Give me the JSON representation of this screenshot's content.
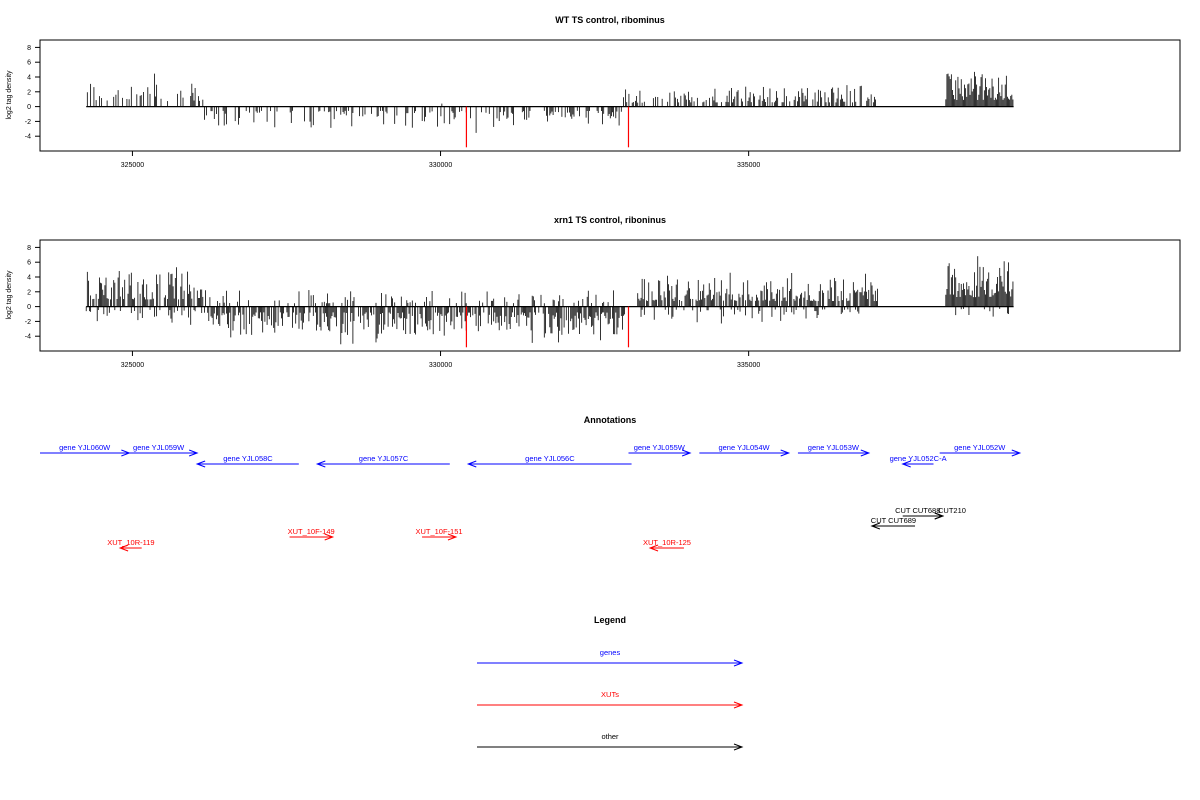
{
  "colors": {
    "genes": "#0000ff",
    "xuts": "#ff0000",
    "other": "#000000",
    "axis": "#000000",
    "highlight": "#ff0000"
  },
  "chart_data": [
    {
      "type": "bar",
      "panel": "top",
      "title": "WT TS control, ribominus",
      "ylabel": "log2 tag density",
      "xlim": [
        323500,
        342000
      ],
      "ylim": [
        -6,
        9
      ],
      "yticks": [
        8,
        6,
        4,
        2,
        0,
        -2,
        -4
      ],
      "ytick_labels": [
        "8",
        "6",
        "4",
        "2",
        "0",
        "-2",
        "-4"
      ],
      "xticks": [
        325000,
        330000,
        335000
      ],
      "xtick_labels": [
        "325000",
        "330000",
        "335000"
      ],
      "data_range": [
        324250,
        339300
      ],
      "segments": [
        {
          "from": 324250,
          "to": 326150,
          "sign": 1,
          "max": 5.0,
          "density": 0.35
        },
        {
          "from": 326150,
          "to": 332950,
          "sign": -1,
          "max": 3.8,
          "density": 0.4
        },
        {
          "from": 329950,
          "to": 330050,
          "sign": 1,
          "max": 1.0,
          "density": 0.5
        },
        {
          "from": 332950,
          "to": 333400,
          "sign": 1,
          "max": 3.5,
          "density": 0.5
        },
        {
          "from": 333400,
          "to": 337100,
          "sign": 1,
          "max": 3.8,
          "density": 0.55
        },
        {
          "from": 338200,
          "to": 339300,
          "sign": 1,
          "max": 6.0,
          "density": 1.0
        }
      ],
      "highlights": [
        {
          "x": 330420,
          "value": -5.5
        },
        {
          "x": 333050,
          "value": -5.5
        }
      ]
    },
    {
      "type": "bar",
      "panel": "middle",
      "title": "xrn1 TS control, riboninus",
      "ylabel": "log2 tag density",
      "xlim": [
        323500,
        342000
      ],
      "ylim": [
        -6,
        9
      ],
      "yticks": [
        8,
        6,
        4,
        2,
        0,
        -2,
        -4
      ],
      "ytick_labels": [
        "8",
        "6",
        "4",
        "2",
        "0",
        "-2",
        "-4"
      ],
      "xticks": [
        325000,
        330000,
        335000
      ],
      "xtick_labels": [
        "325000",
        "330000",
        "335000"
      ],
      "data_range": [
        324250,
        339300
      ],
      "segments": [
        {
          "from": 324250,
          "to": 326150,
          "sign": 1,
          "max": 6.5,
          "density": 0.7
        },
        {
          "from": 324250,
          "to": 326150,
          "sign": -1,
          "max": 3.0,
          "density": 0.3
        },
        {
          "from": 326150,
          "to": 333000,
          "sign": -1,
          "max": 5.2,
          "density": 0.75
        },
        {
          "from": 326150,
          "to": 333000,
          "sign": 1,
          "max": 3.0,
          "density": 0.2
        },
        {
          "from": 333200,
          "to": 337100,
          "sign": 1,
          "max": 5.0,
          "density": 0.8
        },
        {
          "from": 333200,
          "to": 337100,
          "sign": -1,
          "max": 2.5,
          "density": 0.2
        },
        {
          "from": 338200,
          "to": 339300,
          "sign": 1,
          "max": 8.5,
          "density": 1.0
        },
        {
          "from": 338200,
          "to": 339300,
          "sign": -1,
          "max": 2.0,
          "density": 0.2
        }
      ],
      "highlights": [
        {
          "x": 330420,
          "value": -5.5
        },
        {
          "x": 333050,
          "value": -5.5
        }
      ]
    }
  ],
  "annotations": {
    "title": "Annotations",
    "genes": [
      {
        "label": "gene YJL060W",
        "from": 323500,
        "to": 324950,
        "strand": "+"
      },
      {
        "label": "gene YJL059W",
        "from": 324800,
        "to": 326050,
        "strand": "+"
      },
      {
        "label": "gene YJL058C",
        "from": 326050,
        "to": 327700,
        "strand": "-"
      },
      {
        "label": "gene YJL057C",
        "from": 328000,
        "to": 330150,
        "strand": "-"
      },
      {
        "label": "gene YJL056C",
        "from": 330450,
        "to": 333100,
        "strand": "-"
      },
      {
        "label": "gene YJL055W",
        "from": 333050,
        "to": 334050,
        "strand": "+"
      },
      {
        "label": "gene YJL054W",
        "from": 334200,
        "to": 335650,
        "strand": "+"
      },
      {
        "label": "gene YJL053W",
        "from": 335800,
        "to": 336950,
        "strand": "+"
      },
      {
        "label": "gene YJL052C-A",
        "from": 337500,
        "to": 338000,
        "strand": "-"
      },
      {
        "label": "gene YJL052W",
        "from": 338100,
        "to": 339400,
        "strand": "+"
      }
    ],
    "xuts": [
      {
        "label": "XUT_10R-119",
        "from": 324800,
        "to": 325150,
        "strand": "-"
      },
      {
        "label": "XUT_10F-149",
        "from": 327550,
        "to": 328250,
        "strand": "+"
      },
      {
        "label": "XUT_10F-151",
        "from": 329700,
        "to": 330250,
        "strand": "+"
      },
      {
        "label": "XUT_10R-125",
        "from": 333400,
        "to": 333950,
        "strand": "-"
      }
    ],
    "other": [
      {
        "label": "CUT CUT689",
        "from": 337000,
        "to": 337700,
        "strand": "-"
      },
      {
        "label": "CUT CUT688",
        "from": 337500,
        "to": 338150,
        "strand": "+"
      },
      {
        "label": "CUT210",
        "from": 337800,
        "to": 338150,
        "strand": "+"
      }
    ]
  },
  "legend": {
    "title": "Legend",
    "items": [
      {
        "label": "genes",
        "color": "#0000ff"
      },
      {
        "label": "XUTs",
        "color": "#ff0000"
      },
      {
        "label": "other",
        "color": "#000000"
      }
    ]
  }
}
